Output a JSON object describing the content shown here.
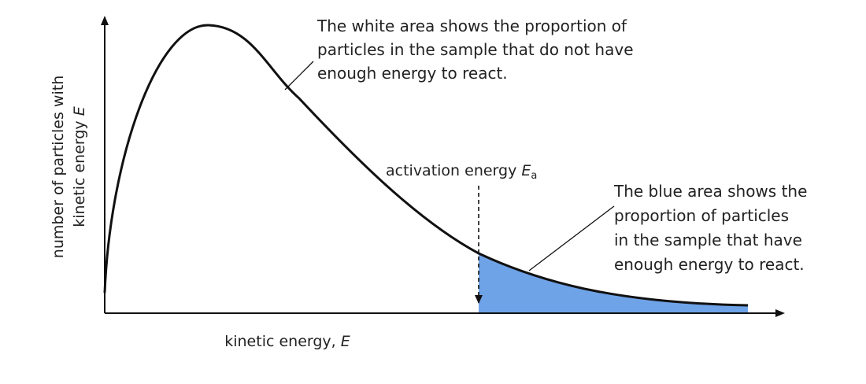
{
  "white_note": {
    "lines": [
      "The white area shows the proportion of",
      "particles in the sample that do not have",
      "enough energy to react."
    ]
  },
  "blue_note": {
    "lines": [
      "The blue area shows the",
      "proportion of particles",
      "in the sample that have",
      "enough energy to react."
    ]
  },
  "activation_label": {
    "text": "activation energy ",
    "symbol": "E",
    "subscript": "a"
  },
  "x_axis": {
    "label": "kinetic energy, ",
    "symbol": "E"
  },
  "y_axis": {
    "line1": "number of particles with",
    "line2": "kinetic energy ",
    "symbol": "E"
  },
  "colors": {
    "blue_area": "#6fa3e8",
    "curve": "#111111",
    "white_area": "#ffffff"
  }
}
